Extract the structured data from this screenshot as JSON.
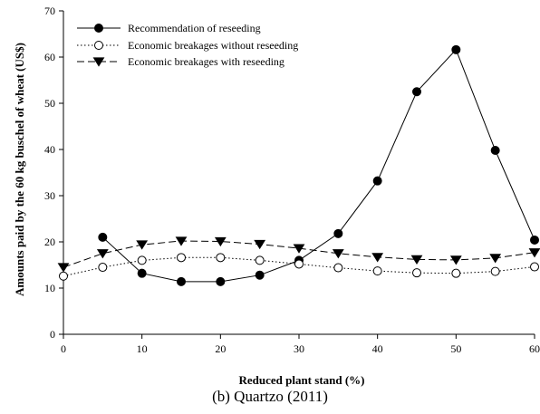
{
  "caption": "(b) Quartzo (2011)",
  "chart_data": {
    "type": "line",
    "xlabel": "Reduced plant stand (%)",
    "ylabel": "Amounts paid by the 60 kg buschel of wheat (US$)",
    "xlim": [
      0,
      60
    ],
    "ylim": [
      0,
      70
    ],
    "xticks": [
      0,
      10,
      20,
      30,
      40,
      50,
      60
    ],
    "yticks": [
      0,
      10,
      20,
      30,
      40,
      50,
      60,
      70
    ],
    "grid": false,
    "legend_position": "top-left",
    "series": [
      {
        "name": "Recommendation of reseeding",
        "marker": "filled-circle",
        "line_style": "solid",
        "x": [
          5,
          10,
          15,
          20,
          25,
          30,
          35,
          40,
          45,
          50,
          55,
          60
        ],
        "y": [
          21.0,
          13.2,
          11.4,
          11.4,
          12.8,
          16.0,
          21.8,
          33.2,
          52.5,
          61.6,
          39.8,
          20.4
        ]
      },
      {
        "name": "Economic breakages without reseeding",
        "marker": "open-circle",
        "line_style": "dotted",
        "x": [
          0,
          5,
          10,
          15,
          20,
          25,
          30,
          35,
          40,
          45,
          50,
          55,
          60
        ],
        "y": [
          12.6,
          14.5,
          16.0,
          16.6,
          16.6,
          16.0,
          15.2,
          14.4,
          13.7,
          13.3,
          13.2,
          13.6,
          14.6
        ]
      },
      {
        "name": "Economic breakages with reseeding",
        "marker": "filled-triangle-down",
        "line_style": "dashed",
        "x": [
          0,
          5,
          10,
          15,
          20,
          25,
          30,
          35,
          40,
          45,
          50,
          55,
          60
        ],
        "y": [
          14.5,
          17.5,
          19.4,
          20.2,
          20.1,
          19.5,
          18.6,
          17.5,
          16.7,
          16.2,
          16.1,
          16.5,
          17.7
        ]
      }
    ]
  }
}
